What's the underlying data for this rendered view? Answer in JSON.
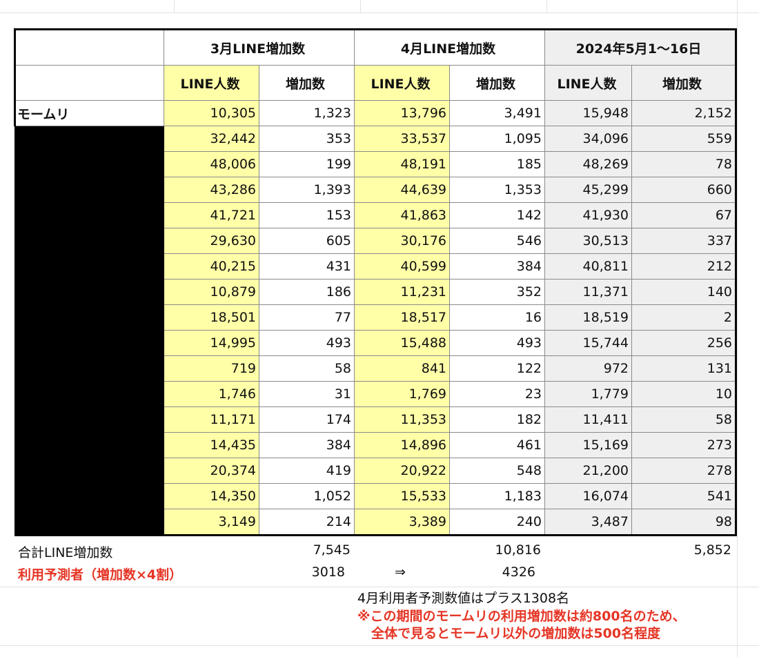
{
  "headers": {
    "march_group": "3月LINE増加数",
    "april_group": "4月LINE増加数",
    "may_group": "2024年5月1～16日",
    "col_line_people": "LINE人数",
    "col_increase": "増加数"
  },
  "rows": [
    {
      "name": "モームリ",
      "m_people": "10,305",
      "m_inc": "1,323",
      "a_people": "13,796",
      "a_inc": "3,491",
      "y_people": "15,948",
      "y_inc": "2,152"
    },
    {
      "name": "",
      "m_people": "32,442",
      "m_inc": "353",
      "a_people": "33,537",
      "a_inc": "1,095",
      "y_people": "34,096",
      "y_inc": "559"
    },
    {
      "name": "",
      "m_people": "48,006",
      "m_inc": "199",
      "a_people": "48,191",
      "a_inc": "185",
      "y_people": "48,269",
      "y_inc": "78"
    },
    {
      "name": "",
      "m_people": "43,286",
      "m_inc": "1,393",
      "a_people": "44,639",
      "a_inc": "1,353",
      "y_people": "45,299",
      "y_inc": "660"
    },
    {
      "name": "",
      "m_people": "41,721",
      "m_inc": "153",
      "a_people": "41,863",
      "a_inc": "142",
      "y_people": "41,930",
      "y_inc": "67"
    },
    {
      "name": "",
      "m_people": "29,630",
      "m_inc": "605",
      "a_people": "30,176",
      "a_inc": "546",
      "y_people": "30,513",
      "y_inc": "337"
    },
    {
      "name": "",
      "m_people": "40,215",
      "m_inc": "431",
      "a_people": "40,599",
      "a_inc": "384",
      "y_people": "40,811",
      "y_inc": "212"
    },
    {
      "name": "",
      "m_people": "10,879",
      "m_inc": "186",
      "a_people": "11,231",
      "a_inc": "352",
      "y_people": "11,371",
      "y_inc": "140"
    },
    {
      "name": "",
      "m_people": "18,501",
      "m_inc": "77",
      "a_people": "18,517",
      "a_inc": "16",
      "y_people": "18,519",
      "y_inc": "2"
    },
    {
      "name": "",
      "m_people": "14,995",
      "m_inc": "493",
      "a_people": "15,488",
      "a_inc": "493",
      "y_people": "15,744",
      "y_inc": "256"
    },
    {
      "name": "",
      "m_people": "719",
      "m_inc": "58",
      "a_people": "841",
      "a_inc": "122",
      "y_people": "972",
      "y_inc": "131"
    },
    {
      "name": "",
      "m_people": "1,746",
      "m_inc": "31",
      "a_people": "1,769",
      "a_inc": "23",
      "y_people": "1,779",
      "y_inc": "10"
    },
    {
      "name": "",
      "m_people": "11,171",
      "m_inc": "174",
      "a_people": "11,353",
      "a_inc": "182",
      "y_people": "11,411",
      "y_inc": "58"
    },
    {
      "name": "",
      "m_people": "14,435",
      "m_inc": "384",
      "a_people": "14,896",
      "a_inc": "461",
      "y_people": "15,169",
      "y_inc": "273"
    },
    {
      "name": "",
      "m_people": "20,374",
      "m_inc": "419",
      "a_people": "20,922",
      "a_inc": "548",
      "y_people": "21,200",
      "y_inc": "278"
    },
    {
      "name": "",
      "m_people": "14,350",
      "m_inc": "1,052",
      "a_people": "15,533",
      "a_inc": "1,183",
      "y_people": "16,074",
      "y_inc": "541"
    },
    {
      "name": "",
      "m_people": "3,149",
      "m_inc": "214",
      "a_people": "3,389",
      "a_inc": "240",
      "y_people": "3,487",
      "y_inc": "98"
    }
  ],
  "summary": {
    "total_label": "合計LINE増加数",
    "total_march": "7,545",
    "total_april": "10,816",
    "total_may": "5,852",
    "forecast_label": "利用予測者（増加数×4割）",
    "forecast_march": "3018",
    "arrow": "⇒",
    "forecast_april": "4326",
    "note1": "4月利用者予測数値はプラス1308名",
    "note2": "※この期間のモームリの利用増加数は約800名のため、",
    "note3": "全体で見るとモームリ以外の増加数は500名程度"
  },
  "colors": {
    "yellow": "#ffffa8",
    "gray": "#efefef",
    "red": "#e53525",
    "black": "#000000"
  }
}
